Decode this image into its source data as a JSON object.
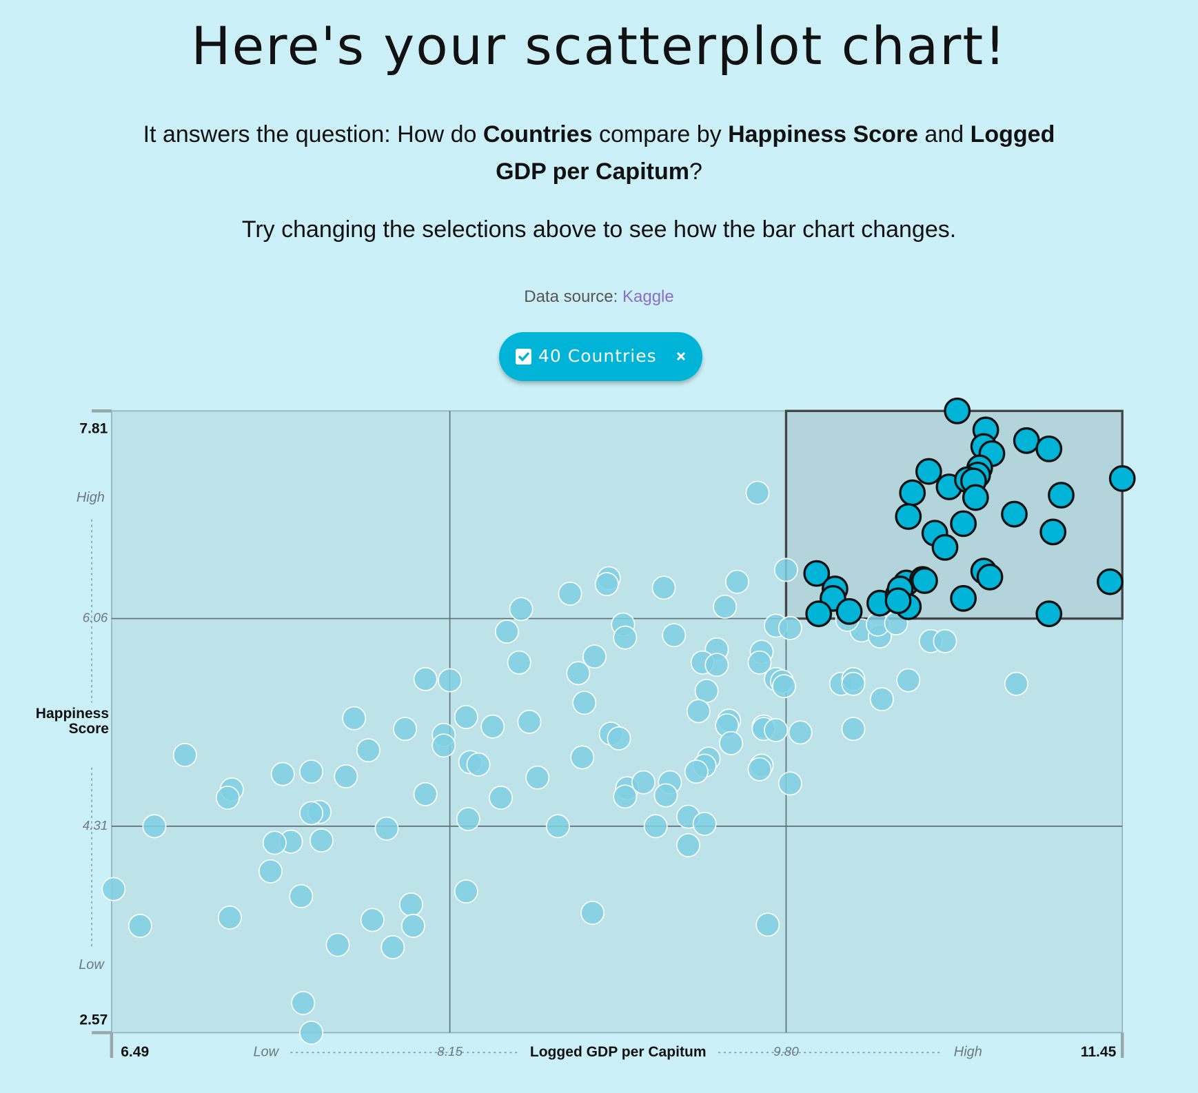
{
  "header": {
    "title": "Here's your scatterplot chart!",
    "question": [
      "It answers the question: How do ",
      "Countries",
      " compare by ",
      "Happiness Score",
      " and ",
      "Logged GDP per Capitum",
      "?"
    ],
    "note": "Try changing the selections above to see how the bar chart changes.",
    "source_label": "Data source:",
    "source_link": "Kaggle",
    "badge": "40 Countries"
  },
  "chart_data": {
    "type": "scatter",
    "xlabel": "Logged GDP per Capitum",
    "ylabel": "Happiness Score",
    "x_low_label": "Low",
    "x_high_label": "High",
    "y_low_label": "Low",
    "y_high_label": "High",
    "xlim": [
      6.49,
      11.45
    ],
    "ylim": [
      2.57,
      7.81
    ],
    "xticks": [
      6.49,
      8.15,
      {
        "value": 9.8,
        "label": "9.80"
      },
      11.45
    ],
    "yticks": [
      2.57,
      4.31,
      6.06,
      7.81
    ],
    "grid": true,
    "series": [
      {
        "color": "#7fcfe2",
        "x": [
          9.66,
          9.8,
          9.56,
          9.5,
          9.2,
          8.93,
          8.92,
          8.74,
          8.5,
          8.43,
          8.49,
          9.0,
          9.01,
          9.25,
          8.86,
          8.78,
          9.46,
          9.39,
          9.46,
          9.68,
          9.67,
          9.75,
          9.82,
          9.75,
          9.78,
          9.79,
          9.41,
          8.81,
          9.37,
          8.03,
          8.15,
          7.68,
          7.93,
          8.12,
          8.12,
          8.23,
          8.36,
          8.54,
          8.94,
          8.98,
          9.52,
          9.51,
          9.69,
          9.69,
          9.75,
          9.87,
          9.53,
          8.8,
          9.42,
          9.4,
          9.36,
          9.68,
          9.67,
          9.82,
          8.58,
          8.25,
          8.29,
          7.75,
          7.64,
          7.47,
          7.33,
          6.85,
          7.08,
          7.06,
          8.03,
          8.4,
          9.02,
          9.1,
          9.01,
          9.23,
          9.21,
          9.32,
          9.4,
          9.16,
          8.68,
          8.24,
          7.84,
          7.51,
          7.47,
          7.37,
          7.52,
          7.29,
          7.27,
          6.7,
          6.5,
          6.63,
          7.07,
          7.42,
          7.77,
          7.87,
          7.6,
          7.96,
          7.97,
          8.23,
          8.85,
          9.71,
          9.32,
          7.43,
          7.47,
          10.07,
          10.13,
          10.13,
          10.27,
          10.13,
          10.4,
          10.93,
          10.51,
          10.58,
          10.17,
          10.26,
          10.25,
          10.34,
          10.1
        ],
        "values": [
          7.12,
          6.47,
          6.37,
          6.16,
          6.32,
          6.4,
          6.35,
          6.27,
          6.14,
          5.95,
          5.69,
          6.01,
          5.9,
          5.92,
          5.74,
          5.6,
          5.8,
          5.69,
          5.67,
          5.78,
          5.69,
          6.0,
          5.98,
          5.55,
          5.53,
          5.49,
          5.45,
          5.35,
          5.28,
          5.55,
          5.54,
          5.22,
          5.13,
          5.08,
          4.99,
          5.23,
          5.15,
          5.19,
          5.09,
          5.05,
          5.2,
          5.16,
          5.15,
          5.13,
          5.12,
          5.1,
          5.01,
          4.89,
          4.88,
          4.82,
          4.77,
          4.82,
          4.79,
          4.67,
          4.72,
          4.85,
          4.83,
          4.95,
          4.73,
          4.77,
          4.75,
          4.91,
          4.62,
          4.55,
          4.58,
          4.55,
          4.63,
          4.68,
          4.56,
          4.68,
          4.57,
          4.39,
          4.33,
          4.31,
          4.31,
          4.37,
          4.29,
          4.43,
          4.42,
          4.18,
          4.19,
          4.17,
          3.93,
          4.31,
          3.78,
          3.47,
          3.54,
          3.72,
          3.52,
          3.29,
          3.31,
          3.65,
          3.47,
          3.76,
          3.58,
          3.48,
          4.15,
          2.82,
          2.57,
          5.51,
          5.55,
          5.51,
          5.38,
          5.13,
          5.54,
          5.51,
          5.87,
          5.87,
          5.96,
          5.91,
          6.01,
          6.02,
          6.05
        ]
      },
      {
        "color": "#00b4d8",
        "x": [
          10.64,
          10.78,
          10.77,
          10.81,
          10.98,
          11.09,
          11.45,
          10.5,
          10.42,
          10.6,
          10.75,
          10.74,
          10.69,
          10.72,
          10.73,
          11.15,
          10.92,
          10.4,
          10.67,
          10.53,
          10.58,
          11.11,
          9.95,
          10.04,
          10.03,
          10.11,
          9.96,
          10.26,
          10.35,
          10.39,
          10.36,
          10.4,
          10.35,
          10.47,
          10.48,
          10.77,
          10.8,
          10.67,
          11.39,
          11.09
        ],
        "values": [
          7.81,
          7.65,
          7.51,
          7.45,
          7.56,
          7.49,
          7.24,
          7.3,
          7.12,
          7.17,
          7.33,
          7.27,
          7.23,
          7.22,
          7.08,
          7.1,
          6.94,
          6.92,
          6.86,
          6.78,
          6.66,
          6.79,
          6.44,
          6.31,
          6.23,
          6.12,
          6.1,
          6.19,
          6.26,
          6.36,
          6.31,
          6.16,
          6.21,
          6.39,
          6.38,
          6.46,
          6.41,
          6.23,
          6.37,
          6.1
        ]
      }
    ]
  }
}
